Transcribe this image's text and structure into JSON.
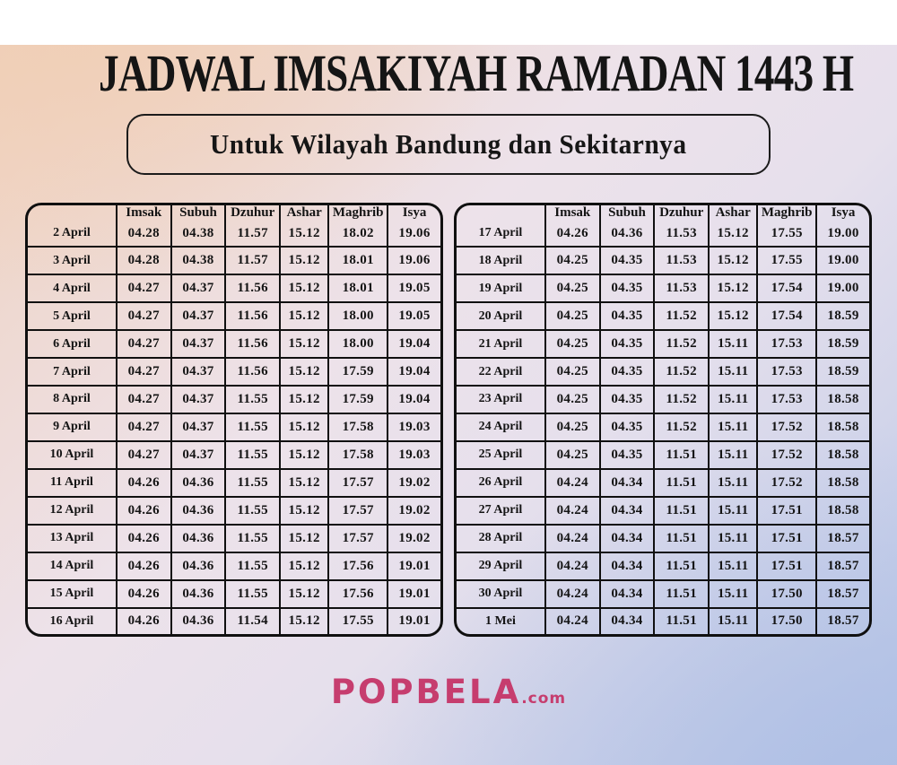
{
  "title": "JADWAL IMSAKIYAH RAMADAN 1443 H",
  "subtitle": "Untuk Wilayah Bandung dan Sekitarnya",
  "columns": [
    "Imsak",
    "Subuh",
    "Dzuhur",
    "Ashar",
    "Maghrib",
    "Isya"
  ],
  "tables": [
    {
      "rows": [
        {
          "date": "2 April",
          "times": [
            "04.28",
            "04.38",
            "11.57",
            "15.12",
            "18.02",
            "19.06"
          ]
        },
        {
          "date": "3 April",
          "times": [
            "04.28",
            "04.38",
            "11.57",
            "15.12",
            "18.01",
            "19.06"
          ]
        },
        {
          "date": "4 April",
          "times": [
            "04.27",
            "04.37",
            "11.56",
            "15.12",
            "18.01",
            "19.05"
          ]
        },
        {
          "date": "5 April",
          "times": [
            "04.27",
            "04.37",
            "11.56",
            "15.12",
            "18.00",
            "19.05"
          ]
        },
        {
          "date": "6 April",
          "times": [
            "04.27",
            "04.37",
            "11.56",
            "15.12",
            "18.00",
            "19.04"
          ]
        },
        {
          "date": "7 April",
          "times": [
            "04.27",
            "04.37",
            "11.56",
            "15.12",
            "17.59",
            "19.04"
          ]
        },
        {
          "date": "8 April",
          "times": [
            "04.27",
            "04.37",
            "11.55",
            "15.12",
            "17.59",
            "19.04"
          ]
        },
        {
          "date": "9 April",
          "times": [
            "04.27",
            "04.37",
            "11.55",
            "15.12",
            "17.58",
            "19.03"
          ]
        },
        {
          "date": "10 April",
          "times": [
            "04.27",
            "04.37",
            "11.55",
            "15.12",
            "17.58",
            "19.03"
          ]
        },
        {
          "date": "11 April",
          "times": [
            "04.26",
            "04.36",
            "11.55",
            "15.12",
            "17.57",
            "19.02"
          ]
        },
        {
          "date": "12 April",
          "times": [
            "04.26",
            "04.36",
            "11.55",
            "15.12",
            "17.57",
            "19.02"
          ]
        },
        {
          "date": "13 April",
          "times": [
            "04.26",
            "04.36",
            "11.55",
            "15.12",
            "17.57",
            "19.02"
          ]
        },
        {
          "date": "14 April",
          "times": [
            "04.26",
            "04.36",
            "11.55",
            "15.12",
            "17.56",
            "19.01"
          ]
        },
        {
          "date": "15 April",
          "times": [
            "04.26",
            "04.36",
            "11.55",
            "15.12",
            "17.56",
            "19.01"
          ]
        },
        {
          "date": "16 April",
          "times": [
            "04.26",
            "04.36",
            "11.54",
            "15.12",
            "17.55",
            "19.01"
          ]
        }
      ]
    },
    {
      "rows": [
        {
          "date": "17 April",
          "times": [
            "04.26",
            "04.36",
            "11.53",
            "15.12",
            "17.55",
            "19.00"
          ]
        },
        {
          "date": "18 April",
          "times": [
            "04.25",
            "04.35",
            "11.53",
            "15.12",
            "17.55",
            "19.00"
          ]
        },
        {
          "date": "19 April",
          "times": [
            "04.25",
            "04.35",
            "11.53",
            "15.12",
            "17.54",
            "19.00"
          ]
        },
        {
          "date": "20 April",
          "times": [
            "04.25",
            "04.35",
            "11.52",
            "15.12",
            "17.54",
            "18.59"
          ]
        },
        {
          "date": "21 April",
          "times": [
            "04.25",
            "04.35",
            "11.52",
            "15.11",
            "17.53",
            "18.59"
          ]
        },
        {
          "date": "22 April",
          "times": [
            "04.25",
            "04.35",
            "11.52",
            "15.11",
            "17.53",
            "18.59"
          ]
        },
        {
          "date": "23 April",
          "times": [
            "04.25",
            "04.35",
            "11.52",
            "15.11",
            "17.53",
            "18.58"
          ]
        },
        {
          "date": "24 April",
          "times": [
            "04.25",
            "04.35",
            "11.52",
            "15.11",
            "17.52",
            "18.58"
          ]
        },
        {
          "date": "25 April",
          "times": [
            "04.25",
            "04.35",
            "11.51",
            "15.11",
            "17.52",
            "18.58"
          ]
        },
        {
          "date": "26 April",
          "times": [
            "04.24",
            "04.34",
            "11.51",
            "15.11",
            "17.52",
            "18.58"
          ]
        },
        {
          "date": "27 April",
          "times": [
            "04.24",
            "04.34",
            "11.51",
            "15.11",
            "17.51",
            "18.58"
          ]
        },
        {
          "date": "28 April",
          "times": [
            "04.24",
            "04.34",
            "11.51",
            "15.11",
            "17.51",
            "18.57"
          ]
        },
        {
          "date": "29 April",
          "times": [
            "04.24",
            "04.34",
            "11.51",
            "15.11",
            "17.51",
            "18.57"
          ]
        },
        {
          "date": "30 April",
          "times": [
            "04.24",
            "04.34",
            "11.51",
            "15.11",
            "17.50",
            "18.57"
          ]
        },
        {
          "date": "1 Mei",
          "times": [
            "04.24",
            "04.34",
            "11.51",
            "15.11",
            "17.50",
            "18.57"
          ]
        }
      ]
    }
  ],
  "footer": {
    "brand": "POPBELA",
    "brand_suffix": ".com"
  },
  "colors": {
    "brand_pink": "#c63d6e",
    "text": "#161616",
    "bg_top_left": "#efd2bf",
    "bg_middle": "#ece3ec",
    "bg_bottom_right": "#b9c7e8"
  }
}
